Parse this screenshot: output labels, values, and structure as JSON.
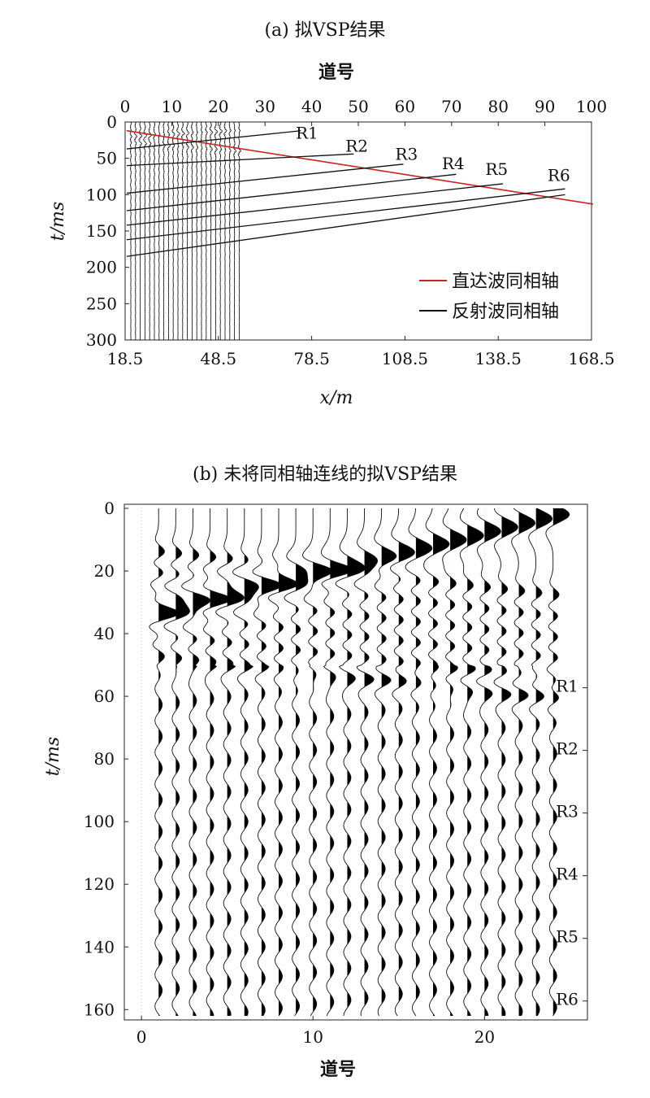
{
  "chart_data": [
    {
      "type": "line",
      "title": "(a) 拟VSP结果",
      "top_axis_label": "道号",
      "top_ticks": [
        "0",
        "10",
        "20",
        "30",
        "40",
        "50",
        "60",
        "70",
        "80",
        "90",
        "100"
      ],
      "top_xlim": [
        0,
        100
      ],
      "xlabel": "x/m",
      "bottom_ticks": [
        "18.5",
        "48.5",
        "78.5",
        "108.5",
        "138.5",
        "168.5"
      ],
      "xlim": [
        18.5,
        168.5
      ],
      "ylabel": "t/ms",
      "y_ticks": [
        "0",
        "50",
        "100",
        "150",
        "200",
        "250",
        "300"
      ],
      "ylim": [
        0,
        300
      ],
      "y_inverted": true,
      "wiggle_traces": {
        "from_trace": 1,
        "to_trace": 24
      },
      "series": [
        {
          "name": "直达波同相轴",
          "color": "#cc2222",
          "x": [
            19,
            169
          ],
          "y": [
            12,
            113
          ]
        },
        {
          "name": "反射波同相轴",
          "color": "#111111",
          "x": [
            19,
            75
          ],
          "y": [
            37,
            12
          ]
        },
        {
          "name": "反射波同相轴",
          "color": "#111111",
          "x": [
            19,
            92
          ],
          "y": [
            60,
            44
          ]
        },
        {
          "name": "反射波同相轴",
          "color": "#111111",
          "x": [
            19,
            108
          ],
          "y": [
            98,
            58
          ]
        },
        {
          "name": "反射波同相轴",
          "color": "#111111",
          "x": [
            19,
            125
          ],
          "y": [
            122,
            72
          ]
        },
        {
          "name": "反射波同相轴",
          "color": "#111111",
          "x": [
            19,
            140
          ],
          "y": [
            142,
            85
          ]
        },
        {
          "name": "反射波同相轴",
          "color": "#111111",
          "x": [
            19,
            160
          ],
          "y": [
            162,
            92
          ]
        },
        {
          "name": "反射波同相轴",
          "color": "#111111",
          "x": [
            19,
            160
          ],
          "y": [
            185,
            100
          ]
        }
      ],
      "annotations": [
        {
          "text": "R1",
          "x": 77,
          "y": 23
        },
        {
          "text": "R2",
          "x": 93,
          "y": 41
        },
        {
          "text": "R3",
          "x": 109,
          "y": 52
        },
        {
          "text": "R4",
          "x": 124,
          "y": 65
        },
        {
          "text": "R5",
          "x": 138,
          "y": 73
        },
        {
          "text": "R6",
          "x": 158,
          "y": 81
        }
      ],
      "legend": {
        "placement": "bottom-right",
        "entries": [
          "直达波同相轴",
          "反射波同相轴"
        ]
      }
    },
    {
      "type": "line",
      "title": "(b) 未将同相轴连线的拟VSP结果",
      "xlabel": "道号",
      "x_ticks": [
        "0",
        "10",
        "20"
      ],
      "xlim": [
        -1,
        26
      ],
      "ylabel": "t/ms",
      "y_ticks": [
        "0",
        "20",
        "40",
        "60",
        "80",
        "100",
        "120",
        "140",
        "160"
      ],
      "ylim": [
        0,
        162
      ],
      "y_inverted": true,
      "wiggle_traces": {
        "from_trace": 1,
        "to_trace": 24
      },
      "event_labels": [
        {
          "text": "R1",
          "t": 57
        },
        {
          "text": "R2",
          "t": 77
        },
        {
          "text": "R3",
          "t": 97
        },
        {
          "text": "R4",
          "t": 117
        },
        {
          "text": "R5",
          "t": 137
        },
        {
          "text": "R6",
          "t": 157
        }
      ]
    }
  ]
}
